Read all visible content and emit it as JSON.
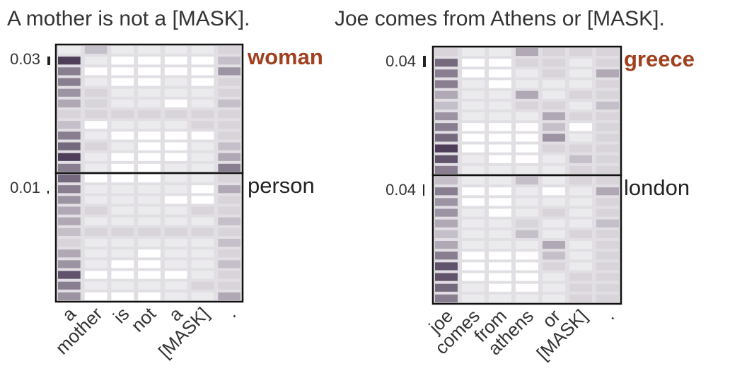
{
  "chart_data": [
    {
      "type": "heatmap",
      "title": "A mother is not a [MASK].",
      "x": [
        "a",
        "mother",
        "is",
        "not",
        "a",
        "[MASK]",
        "."
      ],
      "cmap": [
        "#ffffff",
        "#3a2846"
      ],
      "panels": [
        {
          "label": "woman",
          "label_color": "#a0401e",
          "bold": true,
          "probability": 0.03,
          "values": [
            [
              0.1,
              0.3,
              0.1,
              0.1,
              0.1,
              0.1,
              0.2
            ],
            [
              0.9,
              0.1,
              0.0,
              0.0,
              0.0,
              0.0,
              0.3
            ],
            [
              0.6,
              0.0,
              0.0,
              0.0,
              0.0,
              0.0,
              0.5
            ],
            [
              0.6,
              0.1,
              0.0,
              0.0,
              0.1,
              0.0,
              0.2
            ],
            [
              0.5,
              0.2,
              0.1,
              0.1,
              0.1,
              0.1,
              0.2
            ],
            [
              0.4,
              0.2,
              0.1,
              0.1,
              0.0,
              0.1,
              0.3
            ],
            [
              0.2,
              0.2,
              0.2,
              0.2,
              0.2,
              0.2,
              0.2
            ],
            [
              0.3,
              0.0,
              0.1,
              0.1,
              0.1,
              0.2,
              0.2
            ],
            [
              0.6,
              0.1,
              0.0,
              0.0,
              0.0,
              0.0,
              0.2
            ],
            [
              0.7,
              0.2,
              0.1,
              0.0,
              0.0,
              0.1,
              0.3
            ],
            [
              0.9,
              0.1,
              0.0,
              0.0,
              0.0,
              0.1,
              0.4
            ],
            [
              0.6,
              0.1,
              0.0,
              0.0,
              0.1,
              0.1,
              0.6
            ]
          ]
        },
        {
          "label": "person",
          "label_color": "#222222",
          "bold": false,
          "probability": 0.01,
          "values": [
            [
              0.7,
              0.0,
              0.0,
              0.0,
              0.1,
              0.1,
              0.2
            ],
            [
              0.6,
              0.1,
              0.1,
              0.1,
              0.1,
              0.0,
              0.4
            ],
            [
              0.5,
              0.1,
              0.1,
              0.1,
              0.0,
              0.0,
              0.2
            ],
            [
              0.4,
              0.2,
              0.1,
              0.1,
              0.1,
              0.2,
              0.2
            ],
            [
              0.4,
              0.1,
              0.1,
              0.1,
              0.1,
              0.1,
              0.3
            ],
            [
              0.3,
              0.2,
              0.2,
              0.2,
              0.2,
              0.2,
              0.2
            ],
            [
              0.2,
              0.1,
              0.1,
              0.1,
              0.1,
              0.1,
              0.3
            ],
            [
              0.4,
              0.1,
              0.1,
              0.0,
              0.1,
              0.1,
              0.2
            ],
            [
              0.5,
              0.1,
              0.0,
              0.0,
              0.1,
              0.1,
              0.3
            ],
            [
              0.8,
              0.0,
              0.0,
              0.0,
              0.0,
              0.1,
              0.2
            ],
            [
              0.6,
              0.1,
              0.1,
              0.1,
              0.1,
              0.2,
              0.2
            ],
            [
              0.5,
              0.0,
              0.0,
              0.0,
              0.1,
              0.1,
              0.4
            ]
          ]
        }
      ]
    },
    {
      "type": "heatmap",
      "title": "Joe comes from Athens or [MASK].",
      "x": [
        "joe",
        "comes",
        "from",
        "athens",
        "or",
        "[MASK]",
        "."
      ],
      "cmap": [
        "#ffffff",
        "#3a2846"
      ],
      "panels": [
        {
          "label": "greece",
          "label_color": "#a0401e",
          "bold": true,
          "probability": 0.04,
          "values": [
            [
              0.2,
              0.1,
              0.1,
              0.4,
              0.2,
              0.2,
              0.2
            ],
            [
              0.7,
              0.0,
              0.0,
              0.2,
              0.2,
              0.1,
              0.2
            ],
            [
              0.6,
              0.0,
              0.0,
              0.1,
              0.2,
              0.1,
              0.4
            ],
            [
              0.6,
              0.1,
              0.0,
              0.1,
              0.1,
              0.1,
              0.2
            ],
            [
              0.4,
              0.1,
              0.1,
              0.4,
              0.1,
              0.2,
              0.2
            ],
            [
              0.3,
              0.1,
              0.1,
              0.2,
              0.2,
              0.1,
              0.3
            ],
            [
              0.5,
              0.1,
              0.1,
              0.1,
              0.4,
              0.2,
              0.2
            ],
            [
              0.6,
              0.0,
              0.0,
              0.0,
              0.3,
              0.0,
              0.2
            ],
            [
              0.7,
              0.0,
              0.0,
              0.0,
              0.5,
              0.1,
              0.2
            ],
            [
              0.9,
              0.0,
              0.0,
              0.0,
              0.2,
              0.2,
              0.2
            ],
            [
              0.8,
              0.1,
              0.0,
              0.0,
              0.1,
              0.3,
              0.2
            ],
            [
              0.6,
              0.1,
              0.1,
              0.1,
              0.1,
              0.2,
              0.2
            ]
          ]
        },
        {
          "label": "london",
          "label_color": "#222222",
          "bold": false,
          "probability": 0.04,
          "values": [
            [
              0.3,
              0.1,
              0.1,
              0.3,
              0.1,
              0.2,
              0.2
            ],
            [
              0.6,
              0.0,
              0.0,
              0.1,
              0.0,
              0.1,
              0.4
            ],
            [
              0.5,
              0.0,
              0.0,
              0.1,
              0.1,
              0.1,
              0.2
            ],
            [
              0.5,
              0.1,
              0.0,
              0.1,
              0.2,
              0.1,
              0.2
            ],
            [
              0.4,
              0.1,
              0.1,
              0.2,
              0.1,
              0.1,
              0.3
            ],
            [
              0.3,
              0.1,
              0.1,
              0.3,
              0.1,
              0.2,
              0.2
            ],
            [
              0.4,
              0.1,
              0.1,
              0.1,
              0.4,
              0.1,
              0.2
            ],
            [
              0.6,
              0.0,
              0.0,
              0.0,
              0.3,
              0.1,
              0.2
            ],
            [
              0.8,
              0.0,
              0.0,
              0.0,
              0.2,
              0.1,
              0.2
            ],
            [
              0.8,
              0.0,
              0.0,
              0.0,
              0.1,
              0.2,
              0.2
            ],
            [
              0.7,
              0.1,
              0.0,
              0.0,
              0.1,
              0.2,
              0.2
            ],
            [
              0.6,
              0.1,
              0.1,
              0.1,
              0.1,
              0.2,
              0.2
            ]
          ]
        }
      ]
    }
  ]
}
